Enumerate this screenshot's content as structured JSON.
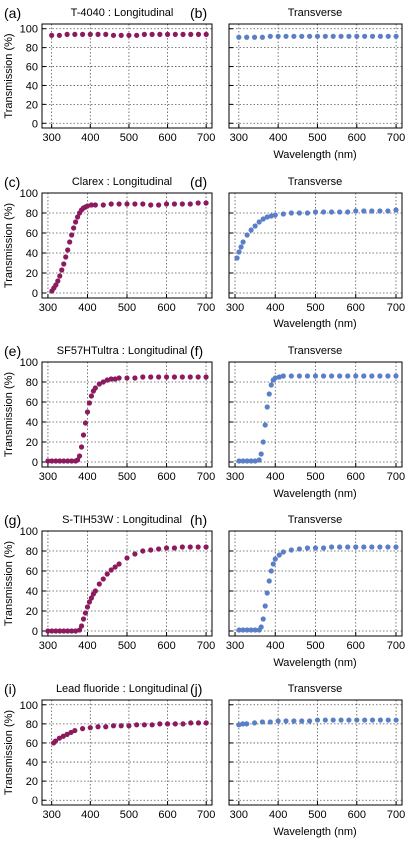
{
  "figure": {
    "xlabel": "Wavelength (nm)",
    "ylabel": "Transmission (%)",
    "colors": {
      "longitudinal": "#8b1a5e",
      "transverse": "#5b7fc7"
    }
  },
  "chart_data": [
    {
      "type": "scatter",
      "panel": "(a)",
      "title": "T-4040 : Longitudinal",
      "xlim": [
        275,
        715
      ],
      "ylim": [
        -5,
        105
      ],
      "xticks": [
        300,
        400,
        500,
        600,
        700
      ],
      "yticks": [
        0,
        20,
        40,
        60,
        80,
        100
      ],
      "grid": true,
      "series": [
        {
          "color": "#8b1a5e",
          "x": [
            300,
            320,
            340,
            360,
            380,
            400,
            420,
            440,
            460,
            480,
            500,
            520,
            540,
            560,
            580,
            600,
            620,
            640,
            660,
            680,
            700
          ],
          "y": [
            93,
            93,
            94,
            94,
            94,
            94,
            94,
            94,
            93,
            93,
            93,
            93,
            94,
            94,
            94,
            94,
            94,
            94,
            94,
            94,
            94
          ]
        }
      ]
    },
    {
      "type": "scatter",
      "panel": "(b)",
      "title": "Transverse",
      "xlim": [
        275,
        715
      ],
      "ylim": [
        -5,
        105
      ],
      "xticks": [
        300,
        400,
        500,
        600,
        700
      ],
      "yticks": [
        0,
        20,
        40,
        60,
        80,
        100
      ],
      "grid": true,
      "series": [
        {
          "color": "#5b7fc7",
          "x": [
            300,
            320,
            340,
            360,
            380,
            400,
            420,
            440,
            460,
            480,
            500,
            520,
            540,
            560,
            580,
            600,
            620,
            640,
            660,
            680,
            700
          ],
          "y": [
            91,
            91,
            91,
            91,
            92,
            92,
            92,
            92,
            92,
            92,
            92,
            92,
            92,
            92,
            92,
            92,
            92,
            92,
            92,
            92,
            92
          ]
        }
      ]
    },
    {
      "type": "scatter",
      "panel": "(c)",
      "title": "Clarex : Longitudinal",
      "xlim": [
        285,
        715
      ],
      "ylim": [
        -5,
        100
      ],
      "xticks": [
        300,
        400,
        500,
        600,
        700
      ],
      "yticks": [
        0,
        20,
        40,
        60,
        80,
        100
      ],
      "grid": true,
      "series": [
        {
          "color": "#8b1a5e",
          "x": [
            310,
            315,
            320,
            325,
            330,
            335,
            340,
            345,
            350,
            355,
            360,
            365,
            370,
            375,
            380,
            385,
            390,
            395,
            400,
            410,
            420,
            440,
            460,
            480,
            500,
            520,
            540,
            560,
            580,
            600,
            620,
            640,
            660,
            680,
            700
          ],
          "y": [
            2,
            5,
            8,
            12,
            17,
            23,
            29,
            36,
            43,
            51,
            58,
            65,
            71,
            76,
            80,
            83,
            85,
            86,
            87,
            88,
            88,
            88,
            89,
            89,
            89,
            89,
            89,
            88,
            88,
            89,
            89,
            89,
            89,
            90,
            90
          ]
        }
      ]
    },
    {
      "type": "scatter",
      "panel": "(d)",
      "title": "Transverse",
      "xlim": [
        285,
        715
      ],
      "ylim": [
        -5,
        100
      ],
      "xticks": [
        300,
        400,
        500,
        600,
        700
      ],
      "yticks": [
        0,
        20,
        40,
        60,
        80,
        100
      ],
      "grid": true,
      "series": [
        {
          "color": "#5b7fc7",
          "x": [
            305,
            310,
            315,
            320,
            330,
            340,
            350,
            360,
            370,
            380,
            390,
            400,
            420,
            440,
            460,
            480,
            500,
            520,
            540,
            560,
            580,
            600,
            620,
            640,
            660,
            680,
            700
          ],
          "y": [
            35,
            41,
            46,
            51,
            58,
            63,
            67,
            71,
            74,
            76,
            77,
            78,
            79,
            80,
            80,
            80,
            81,
            81,
            81,
            81,
            81,
            82,
            82,
            82,
            82,
            82,
            83
          ]
        }
      ]
    },
    {
      "type": "scatter",
      "panel": "(e)",
      "title": "SF57HTultra : Longitudinal",
      "xlim": [
        285,
        715
      ],
      "ylim": [
        -5,
        100
      ],
      "xticks": [
        300,
        400,
        500,
        600,
        700
      ],
      "yticks": [
        0,
        20,
        40,
        60,
        80,
        100
      ],
      "grid": true,
      "series": [
        {
          "color": "#8b1a5e",
          "x": [
            300,
            310,
            320,
            330,
            340,
            350,
            360,
            370,
            375,
            380,
            385,
            390,
            395,
            400,
            405,
            410,
            415,
            420,
            430,
            440,
            450,
            460,
            470,
            480,
            500,
            520,
            540,
            560,
            580,
            600,
            620,
            640,
            660,
            680,
            700
          ],
          "y": [
            1,
            1,
            1,
            1,
            1,
            1,
            1,
            1,
            2,
            6,
            15,
            27,
            39,
            50,
            59,
            66,
            71,
            74,
            78,
            80,
            82,
            83,
            83,
            84,
            84,
            84,
            85,
            85,
            85,
            85,
            85,
            85,
            85,
            85,
            85
          ]
        }
      ]
    },
    {
      "type": "scatter",
      "panel": "(f)",
      "title": "Transverse",
      "xlim": [
        285,
        715
      ],
      "ylim": [
        -5,
        100
      ],
      "xticks": [
        300,
        400,
        500,
        600,
        700
      ],
      "yticks": [
        0,
        20,
        40,
        60,
        80,
        100
      ],
      "grid": true,
      "series": [
        {
          "color": "#5b7fc7",
          "x": [
            310,
            320,
            330,
            340,
            350,
            360,
            365,
            370,
            375,
            380,
            385,
            390,
            395,
            400,
            410,
            420,
            440,
            460,
            480,
            500,
            520,
            540,
            560,
            580,
            600,
            620,
            640,
            660,
            680,
            700
          ],
          "y": [
            1,
            1,
            1,
            1,
            1,
            2,
            8,
            20,
            37,
            55,
            68,
            77,
            82,
            84,
            85,
            86,
            86,
            86,
            86,
            86,
            86,
            86,
            86,
            86,
            86,
            86,
            86,
            86,
            86,
            86
          ]
        }
      ]
    },
    {
      "type": "scatter",
      "panel": "(g)",
      "title": "S-TIH53W : Longitudinal",
      "xlim": [
        285,
        715
      ],
      "ylim": [
        -5,
        100
      ],
      "xticks": [
        300,
        400,
        500,
        600,
        700
      ],
      "yticks": [
        0,
        20,
        40,
        60,
        80,
        100
      ],
      "grid": true,
      "series": [
        {
          "color": "#8b1a5e",
          "x": [
            300,
            310,
            320,
            330,
            340,
            350,
            360,
            370,
            380,
            385,
            390,
            395,
            400,
            405,
            410,
            415,
            420,
            430,
            440,
            450,
            460,
            470,
            480,
            500,
            520,
            540,
            560,
            580,
            600,
            620,
            640,
            660,
            680,
            700
          ],
          "y": [
            0,
            0,
            0,
            0,
            0,
            0,
            0,
            0,
            1,
            5,
            12,
            18,
            24,
            29,
            33,
            37,
            40,
            47,
            52,
            57,
            61,
            64,
            67,
            73,
            77,
            80,
            81,
            82,
            83,
            83,
            84,
            84,
            84,
            84
          ]
        }
      ]
    },
    {
      "type": "scatter",
      "panel": "(h)",
      "title": "Transverse",
      "xlim": [
        285,
        715
      ],
      "ylim": [
        -5,
        100
      ],
      "xticks": [
        300,
        400,
        500,
        600,
        700
      ],
      "yticks": [
        0,
        20,
        40,
        60,
        80,
        100
      ],
      "grid": true,
      "series": [
        {
          "color": "#5b7fc7",
          "x": [
            310,
            320,
            330,
            340,
            350,
            360,
            365,
            370,
            375,
            380,
            385,
            390,
            395,
            400,
            410,
            420,
            440,
            460,
            480,
            500,
            520,
            540,
            560,
            580,
            600,
            620,
            640,
            660,
            680,
            700
          ],
          "y": [
            1,
            1,
            1,
            1,
            1,
            1,
            4,
            12,
            25,
            38,
            50,
            60,
            67,
            72,
            76,
            79,
            81,
            82,
            83,
            83,
            83,
            84,
            84,
            84,
            84,
            84,
            84,
            84,
            84,
            84
          ]
        }
      ]
    },
    {
      "type": "scatter",
      "panel": "(i)",
      "title": "Lead fluoride : Longitudinal",
      "xlim": [
        275,
        715
      ],
      "ylim": [
        -5,
        105
      ],
      "xticks": [
        300,
        400,
        500,
        600,
        700
      ],
      "yticks": [
        0,
        20,
        40,
        60,
        80,
        100
      ],
      "grid": true,
      "series": [
        {
          "color": "#8b1a5e",
          "x": [
            305,
            310,
            320,
            330,
            340,
            350,
            360,
            380,
            400,
            420,
            440,
            460,
            480,
            500,
            520,
            540,
            560,
            580,
            600,
            620,
            640,
            660,
            680,
            700
          ],
          "y": [
            60,
            62,
            65,
            67,
            69,
            71,
            73,
            75,
            76,
            77,
            77,
            78,
            78,
            78,
            79,
            79,
            79,
            80,
            80,
            80,
            80,
            81,
            81,
            81
          ]
        }
      ]
    },
    {
      "type": "scatter",
      "panel": "(j)",
      "title": "Transverse",
      "xlim": [
        275,
        715
      ],
      "ylim": [
        -5,
        105
      ],
      "xticks": [
        300,
        400,
        500,
        600,
        700
      ],
      "yticks": [
        0,
        20,
        40,
        60,
        80,
        100
      ],
      "grid": true,
      "series": [
        {
          "color": "#5b7fc7",
          "x": [
            300,
            310,
            320,
            340,
            360,
            380,
            400,
            420,
            440,
            460,
            480,
            500,
            520,
            540,
            560,
            580,
            600,
            620,
            640,
            660,
            680,
            700
          ],
          "y": [
            79,
            80,
            80,
            81,
            82,
            82,
            83,
            83,
            83,
            83,
            83,
            84,
            84,
            84,
            84,
            84,
            84,
            84,
            84,
            84,
            84,
            84
          ]
        }
      ]
    }
  ]
}
